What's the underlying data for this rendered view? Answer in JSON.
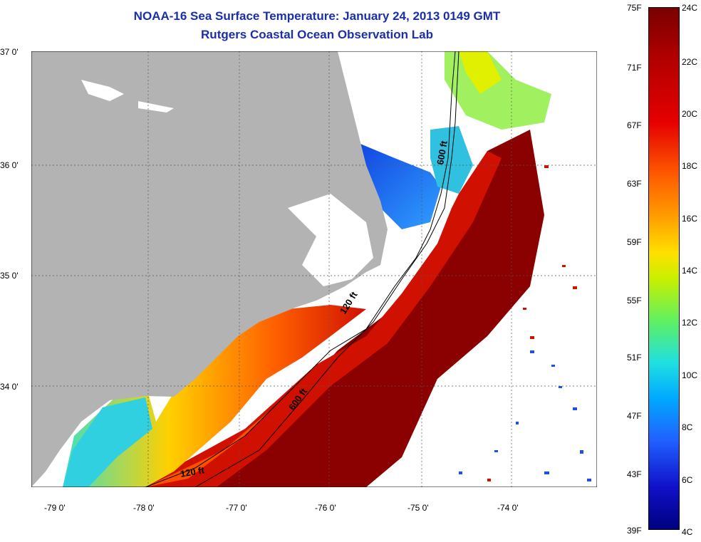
{
  "title": {
    "line1": "NOAA-16 Sea Surface Temperature:  January 24, 2013 0149 GMT",
    "line2": "Rutgers Coastal Ocean Observation Lab"
  },
  "axes": {
    "lat_labels": [
      "37 0'",
      "36 0'",
      "35 0'",
      "34 0'"
    ],
    "lon_labels": [
      "-79 0'",
      "-78 0'",
      "-77 0'",
      "-76 0'",
      "-75 0'",
      "-74 0'"
    ]
  },
  "contours": {
    "shelf_120": "120 ft",
    "shelf_600": "600 ft"
  },
  "colorbar": {
    "fahrenheit": [
      "75F",
      "71F",
      "67F",
      "63F",
      "59F",
      "55F",
      "51F",
      "47F",
      "43F",
      "39F"
    ],
    "celsius": [
      "24C",
      "22C",
      "20C",
      "18C",
      "16C",
      "14C",
      "12C",
      "10C",
      "8C",
      "6C",
      "4C"
    ]
  },
  "colors": {
    "title": "#1a2fa8",
    "land": "#b3b3b3",
    "warm_water": "#8b0000",
    "cold_water": "#1030d0"
  }
}
